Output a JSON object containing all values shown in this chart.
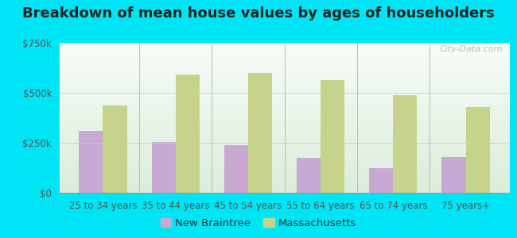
{
  "title": "Breakdown of mean house values by ages of householders",
  "categories": [
    "25 to 34 years",
    "35 to 44 years",
    "45 to 54 years",
    "55 to 64 years",
    "65 to 74 years",
    "75 years+"
  ],
  "new_braintree": [
    310000,
    255000,
    240000,
    175000,
    125000,
    180000
  ],
  "massachusetts": [
    435000,
    590000,
    600000,
    565000,
    490000,
    430000
  ],
  "color_nb": "#c9a8d4",
  "color_ma": "#c5d48a",
  "ylim": [
    0,
    750000
  ],
  "yticks": [
    0,
    250000,
    500000,
    750000
  ],
  "ytick_labels": [
    "$0",
    "$250k",
    "$500k",
    "$750k"
  ],
  "legend_nb": "New Braintree",
  "legend_ma": "Massachusetts",
  "bg_outer": "#00e5f5",
  "watermark": "City-Data.com",
  "title_fontsize": 13,
  "axis_fontsize": 8.5,
  "legend_fontsize": 9.5
}
